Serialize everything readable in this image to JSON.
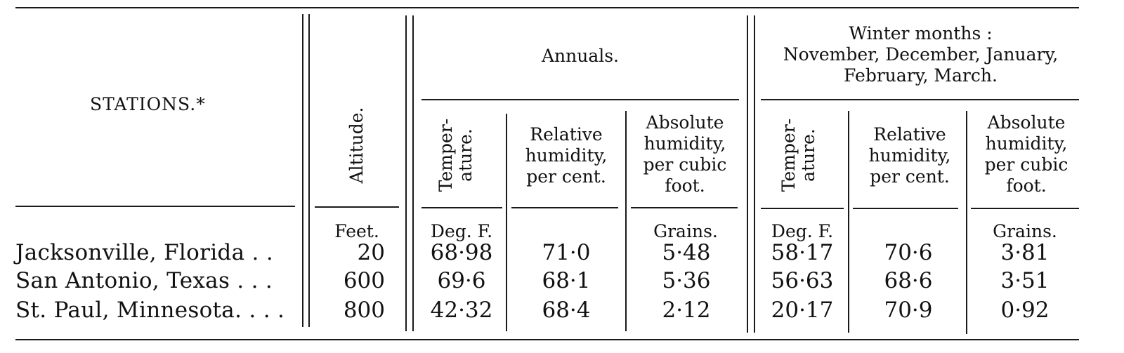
{
  "table": {
    "headers": {
      "stations": "STATIONS.*",
      "altitude": "Altitude.",
      "annuals": "Annuals.",
      "winter_line1": "Winter months :",
      "winter_line2": "November, December, January,",
      "winter_line3": "February, March.",
      "temp_line1": "Temper-",
      "temp_line2": "ature.",
      "rel_hum": "Relative humidity, per cent.",
      "abs_hum": "Absolute humidity, per cubic foot."
    },
    "units": {
      "altitude": "Feet.",
      "annual_temp": "Deg. F.",
      "annual_abs": "Grains.",
      "winter_temp": "Deg. F.",
      "winter_abs": "Grains."
    },
    "rows": [
      {
        "station": "Jacksonville, Florida . .",
        "altitude": "20",
        "annual_temp": "68·98",
        "annual_rel": "71·0",
        "annual_abs": "5·48",
        "winter_temp": "58·17",
        "winter_rel": "70·6",
        "winter_abs": "3·81"
      },
      {
        "station": "San Antonio, Texas . . .",
        "altitude": "600",
        "annual_temp": "69·6",
        "annual_rel": "68·1",
        "annual_abs": "5·36",
        "winter_temp": "56·63",
        "winter_rel": "68·6",
        "winter_abs": "3·51"
      },
      {
        "station": "St. Paul, Minnesota. . . .",
        "altitude": "800",
        "annual_temp": "42·32",
        "annual_rel": "68·4",
        "annual_abs": "2·12",
        "winter_temp": "20·17",
        "winter_rel": "70·9",
        "winter_abs": "0·92"
      }
    ]
  }
}
